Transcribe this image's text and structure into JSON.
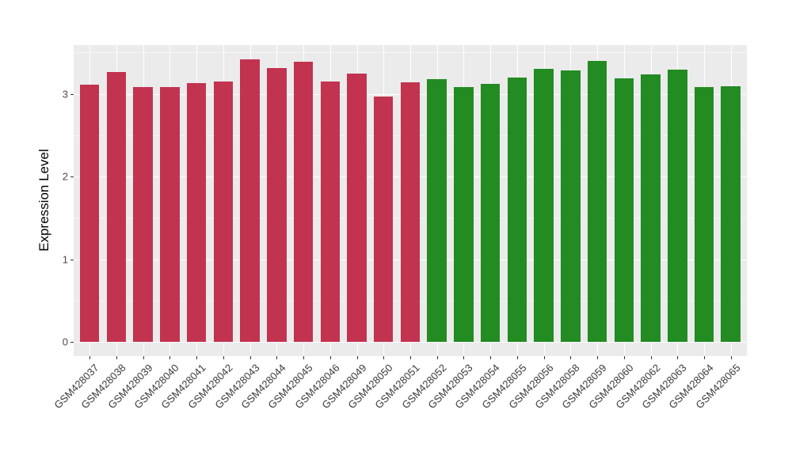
{
  "figure": {
    "background": "#FFFFFF",
    "panel_background": "#EBEBEB",
    "grid_color": "#FFFFFF",
    "tick_color": "#333333",
    "axis_text_color": "#3A3A3A"
  },
  "chart_data": {
    "type": "bar",
    "title": "",
    "xlabel": "",
    "ylabel": "Expression Level",
    "ylim": [
      0,
      3.6
    ],
    "yticks": [
      0,
      1,
      2,
      3
    ],
    "yticks_minor": [
      0.5,
      1.5,
      2.5,
      3.5
    ],
    "grid": "on",
    "legend": "none",
    "group_colors": {
      "group1": "#C23350",
      "group2": "#228B22"
    },
    "categories": [
      "GSM428037",
      "GSM428038",
      "GSM428039",
      "GSM428040",
      "GSM428041",
      "GSM428042",
      "GSM428043",
      "GSM428044",
      "GSM428045",
      "GSM428046",
      "GSM428049",
      "GSM428050",
      "GSM428051",
      "GSM428052",
      "GSM428053",
      "GSM428054",
      "GSM428055",
      "GSM428056",
      "GSM428058",
      "GSM428059",
      "GSM428060",
      "GSM428062",
      "GSM428063",
      "GSM428064",
      "GSM428065"
    ],
    "values": [
      3.11,
      3.26,
      3.08,
      3.08,
      3.13,
      3.15,
      3.42,
      3.31,
      3.39,
      3.15,
      3.24,
      2.97,
      3.14,
      3.18,
      3.08,
      3.12,
      3.2,
      3.3,
      3.28,
      3.4,
      3.19,
      3.23,
      3.29,
      3.08,
      3.09
    ],
    "groups": [
      "group1",
      "group1",
      "group1",
      "group1",
      "group1",
      "group1",
      "group1",
      "group1",
      "group1",
      "group1",
      "group1",
      "group1",
      "group1",
      "group2",
      "group2",
      "group2",
      "group2",
      "group2",
      "group2",
      "group2",
      "group2",
      "group2",
      "group2",
      "group2",
      "group2"
    ]
  }
}
